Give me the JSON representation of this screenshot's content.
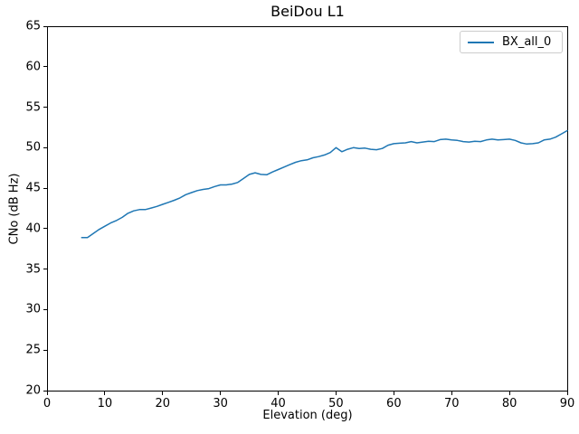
{
  "figure": {
    "title": "BeiDou L1"
  },
  "chart_data": {
    "type": "line",
    "title": "BeiDou L1",
    "xlabel": "Elevation (deg)",
    "ylabel": "CNo (dB Hz)",
    "xlim": [
      0,
      90
    ],
    "ylim": [
      20,
      65
    ],
    "xticks": [
      0,
      10,
      20,
      30,
      40,
      50,
      60,
      70,
      80,
      90
    ],
    "yticks": [
      20,
      25,
      30,
      35,
      40,
      45,
      50,
      55,
      60,
      65
    ],
    "grid": false,
    "background": "#ffffff",
    "spine_color": "#000000",
    "legend": {
      "position": "upper-right",
      "entries": [
        {
          "label": "BX_all_0",
          "color": "#1f77b4"
        }
      ]
    },
    "series": [
      {
        "name": "BX_all_0",
        "color": "#1f77b4",
        "linewidth": 1.5,
        "x": [
          6,
          7,
          8,
          9,
          10,
          11,
          12,
          13,
          14,
          15,
          16,
          17,
          18,
          19,
          20,
          21,
          22,
          23,
          24,
          25,
          26,
          27,
          28,
          29,
          30,
          31,
          32,
          33,
          34,
          35,
          36,
          37,
          38,
          39,
          40,
          41,
          42,
          43,
          44,
          45,
          46,
          47,
          48,
          49,
          50,
          51,
          52,
          53,
          54,
          55,
          56,
          57,
          58,
          59,
          60,
          61,
          62,
          63,
          64,
          65,
          66,
          67,
          68,
          69,
          70,
          71,
          72,
          73,
          74,
          75,
          76,
          77,
          78,
          79,
          80,
          81,
          82,
          83,
          84,
          85,
          86,
          87,
          88,
          89,
          90
        ],
        "y": [
          38.9,
          38.9,
          39.4,
          39.9,
          40.3,
          40.7,
          41.0,
          41.4,
          41.9,
          42.2,
          42.35,
          42.35,
          42.55,
          42.75,
          43.0,
          43.25,
          43.5,
          43.8,
          44.2,
          44.45,
          44.7,
          44.85,
          44.95,
          45.2,
          45.4,
          45.4,
          45.5,
          45.7,
          46.2,
          46.7,
          46.9,
          46.7,
          46.65,
          47.0,
          47.3,
          47.6,
          47.9,
          48.2,
          48.4,
          48.5,
          48.75,
          48.9,
          49.1,
          49.4,
          50.0,
          49.5,
          49.8,
          50.0,
          49.9,
          49.95,
          49.8,
          49.75,
          49.9,
          50.3,
          50.5,
          50.55,
          50.6,
          50.75,
          50.6,
          50.7,
          50.8,
          50.75,
          51.0,
          51.05,
          50.95,
          50.9,
          50.75,
          50.7,
          50.8,
          50.75,
          50.95,
          51.05,
          50.95,
          51.0,
          51.05,
          50.9,
          50.6,
          50.45,
          50.5,
          50.6,
          50.95,
          51.05,
          51.3,
          51.7,
          52.1
        ]
      }
    ]
  }
}
